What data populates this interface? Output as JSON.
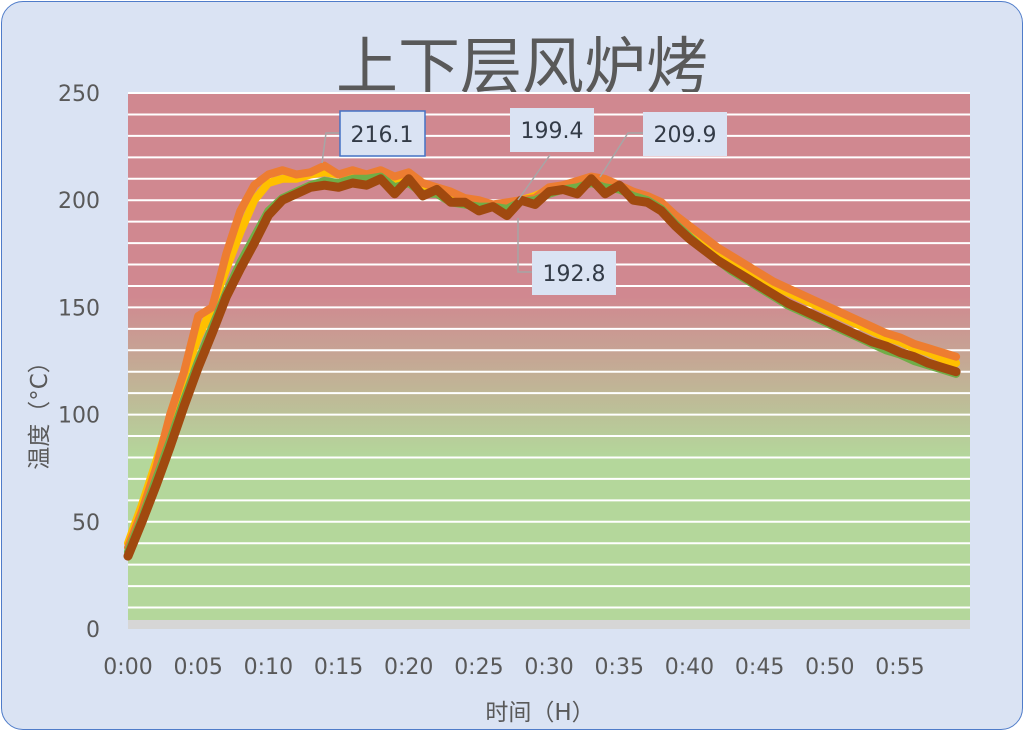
{
  "chart_data": {
    "type": "line",
    "title": "上下层风炉烤",
    "xlabel": "时间（H）",
    "ylabel": "温度（°C）",
    "ylim": [
      0,
      250
    ],
    "yticks": [
      "0",
      "50",
      "100",
      "150",
      "200",
      "250"
    ],
    "xticks": [
      "0:00",
      "0:05",
      "0:10",
      "0:15",
      "0:20",
      "0:25",
      "0:30",
      "0:35",
      "0:40",
      "0:45",
      "0:50",
      "0:55"
    ],
    "x_unit": "minutes",
    "x": [
      0,
      1,
      2,
      3,
      4,
      5,
      6,
      7,
      8,
      9,
      10,
      11,
      12,
      13,
      14,
      15,
      16,
      17,
      18,
      19,
      20,
      21,
      22,
      23,
      24,
      25,
      26,
      27,
      28,
      29,
      30,
      31,
      32,
      33,
      34,
      35,
      36,
      37,
      38,
      39,
      40,
      41,
      42,
      43,
      44,
      45,
      46,
      47,
      48,
      49,
      50,
      51,
      52,
      53,
      54,
      55,
      56,
      57,
      58,
      59
    ],
    "grid": "horizontal every 10",
    "background": "gradient red (top) to green (bottom)",
    "background_colors": {
      "top": "#d08890",
      "bottom": "#b4d79b"
    },
    "series": [
      {
        "color": "#ffc000",
        "values": [
          40,
          58,
          78,
          98,
          118,
          136,
          150,
          168,
          185,
          200,
          208,
          210,
          210,
          212,
          213,
          212,
          213,
          212,
          212,
          210,
          208,
          206,
          203,
          201,
          199,
          197,
          197,
          197,
          200,
          202,
          205,
          207,
          208,
          209,
          207,
          205,
          203,
          201,
          198,
          192,
          186,
          181,
          176,
          172,
          168,
          164,
          160,
          157,
          154,
          151,
          148,
          145,
          142,
          139,
          136,
          134,
          131,
          129,
          126,
          124
        ]
      },
      {
        "color": "#ed7d31",
        "values": [
          38,
          55,
          75,
          100,
          120,
          146,
          150,
          175,
          195,
          207,
          212,
          214,
          212,
          213,
          216.1,
          212,
          214,
          212,
          214,
          211,
          213,
          208,
          206,
          204,
          201,
          200,
          198,
          199,
          200,
          201,
          206,
          207,
          209,
          211,
          209.9,
          207,
          204,
          202,
          199,
          193,
          188,
          183,
          178,
          174,
          170,
          166,
          162,
          159,
          156,
          153,
          150,
          147,
          144,
          141,
          138,
          136,
          133,
          131,
          129,
          127
        ]
      },
      {
        "color": "#70ad47",
        "values": [
          36,
          52,
          70,
          88,
          107,
          125,
          141,
          157,
          171,
          183,
          195,
          201,
          204,
          207,
          209,
          208,
          210,
          210,
          211,
          206,
          208,
          203,
          203,
          199,
          198,
          197,
          197,
          196,
          199.4,
          200,
          203,
          205,
          206,
          208,
          206,
          205,
          202,
          200,
          196,
          189,
          183,
          177,
          172,
          167,
          163,
          159,
          155,
          151,
          148,
          145,
          142,
          139,
          136,
          133,
          130,
          128,
          125,
          123,
          121,
          119
        ]
      },
      {
        "color": "#a0490f",
        "values": [
          34,
          50,
          67,
          85,
          104,
          122,
          138,
          155,
          168,
          180,
          193,
          200,
          203,
          206,
          207,
          206,
          208,
          207,
          210,
          203,
          210,
          202,
          205,
          199,
          199,
          195,
          197,
          192.8,
          200,
          198,
          204,
          205,
          203,
          210,
          203,
          207,
          200,
          199,
          195,
          188,
          182,
          177,
          172,
          168,
          164,
          160,
          156,
          152,
          149,
          146,
          143,
          140,
          137,
          134,
          132,
          129,
          127,
          124,
          122,
          120
        ]
      }
    ],
    "data_labels": [
      "216.1",
      "199.4",
      "209.9",
      "192.8"
    ]
  }
}
